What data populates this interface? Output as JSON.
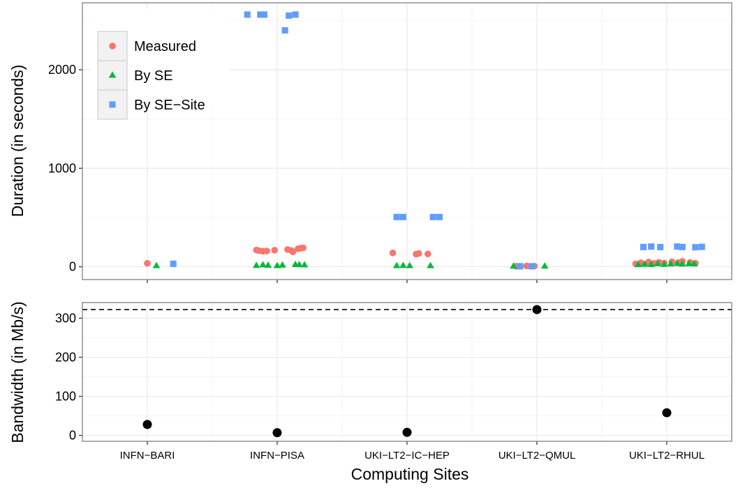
{
  "colors": {
    "measured": "#f8766d",
    "by_se": "#00ba38",
    "by_se_site": "#619cff",
    "bandwidth": "#000000",
    "grid": "#ebebeb",
    "panel_border": "#7f7f7f"
  },
  "chart_data": [
    {
      "type": "scatter",
      "panel": "duration",
      "ylabel": "Duration (in seconds)",
      "ylim": [
        -130,
        2680
      ],
      "yticks": [
        0,
        1000,
        2000
      ],
      "ytick_labels": [
        "0",
        "1000",
        "2000"
      ],
      "categories": [
        "INFN−BARI",
        "INFN−PISA",
        "UKI−LT2−IC−HEP",
        "UKI−LT2−QMUL",
        "UKI−LT2−RHUL"
      ],
      "legend": {
        "placement": "top-left",
        "entries": [
          "Measured",
          "By SE",
          "By SE−Site"
        ]
      },
      "grid": true,
      "series": [
        {
          "name": "Measured",
          "shape": "circle",
          "points": [
            {
              "x": 1,
              "y": 35
            },
            {
              "x": 1.84,
              "y": 170
            },
            {
              "x": 1.86,
              "y": 162
            },
            {
              "x": 1.89,
              "y": 158
            },
            {
              "x": 1.92,
              "y": 160
            },
            {
              "x": 1.98,
              "y": 168
            },
            {
              "x": 2.08,
              "y": 175
            },
            {
              "x": 2.11,
              "y": 165
            },
            {
              "x": 2.12,
              "y": 152
            },
            {
              "x": 2.16,
              "y": 182
            },
            {
              "x": 2.18,
              "y": 188
            },
            {
              "x": 2.2,
              "y": 192
            },
            {
              "x": 2.89,
              "y": 140
            },
            {
              "x": 3.07,
              "y": 128
            },
            {
              "x": 3.09,
              "y": 135
            },
            {
              "x": 3.16,
              "y": 130
            },
            {
              "x": 3.84,
              "y": 5
            },
            {
              "x": 3.92,
              "y": 8
            },
            {
              "x": 3.98,
              "y": 6
            },
            {
              "x": 4.76,
              "y": 30
            },
            {
              "x": 4.8,
              "y": 40
            },
            {
              "x": 4.86,
              "y": 48
            },
            {
              "x": 4.9,
              "y": 35
            },
            {
              "x": 4.94,
              "y": 45
            },
            {
              "x": 4.98,
              "y": 38
            },
            {
              "x": 5.04,
              "y": 50
            },
            {
              "x": 5.09,
              "y": 42
            },
            {
              "x": 5.12,
              "y": 55
            },
            {
              "x": 5.18,
              "y": 44
            },
            {
              "x": 5.22,
              "y": 35
            }
          ]
        },
        {
          "name": "By SE",
          "shape": "triangle",
          "points": [
            {
              "x": 1.07,
              "y": 10
            },
            {
              "x": 1.84,
              "y": 12
            },
            {
              "x": 1.89,
              "y": 18
            },
            {
              "x": 1.93,
              "y": 14
            },
            {
              "x": 2.0,
              "y": 10
            },
            {
              "x": 2.04,
              "y": 16
            },
            {
              "x": 2.14,
              "y": 22
            },
            {
              "x": 2.17,
              "y": 20
            },
            {
              "x": 2.21,
              "y": 18
            },
            {
              "x": 2.92,
              "y": 10
            },
            {
              "x": 2.97,
              "y": 12
            },
            {
              "x": 3.02,
              "y": 10
            },
            {
              "x": 3.18,
              "y": 10
            },
            {
              "x": 3.82,
              "y": 6
            },
            {
              "x": 4.06,
              "y": 6
            },
            {
              "x": 4.78,
              "y": 20
            },
            {
              "x": 4.83,
              "y": 25
            },
            {
              "x": 4.88,
              "y": 22
            },
            {
              "x": 4.93,
              "y": 30
            },
            {
              "x": 4.98,
              "y": 24
            },
            {
              "x": 5.03,
              "y": 28
            },
            {
              "x": 5.08,
              "y": 32
            },
            {
              "x": 5.12,
              "y": 26
            },
            {
              "x": 5.17,
              "y": 30
            },
            {
              "x": 5.21,
              "y": 28
            }
          ]
        },
        {
          "name": "By SE−Site",
          "shape": "square",
          "points": [
            {
              "x": 1.2,
              "y": 30
            },
            {
              "x": 1.77,
              "y": 2560
            },
            {
              "x": 1.87,
              "y": 2560
            },
            {
              "x": 1.9,
              "y": 2560
            },
            {
              "x": 2.06,
              "y": 2400
            },
            {
              "x": 2.09,
              "y": 2550
            },
            {
              "x": 2.14,
              "y": 2560
            },
            {
              "x": 2.92,
              "y": 505
            },
            {
              "x": 2.97,
              "y": 505
            },
            {
              "x": 3.2,
              "y": 505
            },
            {
              "x": 3.25,
              "y": 505
            },
            {
              "x": 3.87,
              "y": 5
            },
            {
              "x": 3.96,
              "y": 5
            },
            {
              "x": 4.82,
              "y": 200
            },
            {
              "x": 4.88,
              "y": 205
            },
            {
              "x": 4.95,
              "y": 200
            },
            {
              "x": 5.08,
              "y": 205
            },
            {
              "x": 5.12,
              "y": 200
            },
            {
              "x": 5.22,
              "y": 198
            },
            {
              "x": 5.27,
              "y": 202
            }
          ]
        }
      ]
    },
    {
      "type": "scatter",
      "panel": "bandwidth",
      "xlabel": "Computing Sites",
      "ylabel": "Bandwidth (in Mb/s)",
      "ylim": [
        -15,
        340
      ],
      "yticks": [
        0,
        100,
        200,
        300
      ],
      "ytick_labels": [
        "0",
        "100",
        "200",
        "300"
      ],
      "categories": [
        "INFN−BARI",
        "INFN−PISA",
        "UKI−LT2−IC−HEP",
        "UKI−LT2−QMUL",
        "UKI−LT2−RHUL"
      ],
      "reference_line": {
        "y": 322,
        "style": "dashed"
      },
      "grid": true,
      "series": [
        {
          "shape": "circle",
          "points": [
            {
              "x": 1,
              "y": 28
            },
            {
              "x": 2,
              "y": 7
            },
            {
              "x": 3,
              "y": 8
            },
            {
              "x": 4,
              "y": 322
            },
            {
              "x": 5,
              "y": 58
            }
          ]
        }
      ]
    }
  ]
}
